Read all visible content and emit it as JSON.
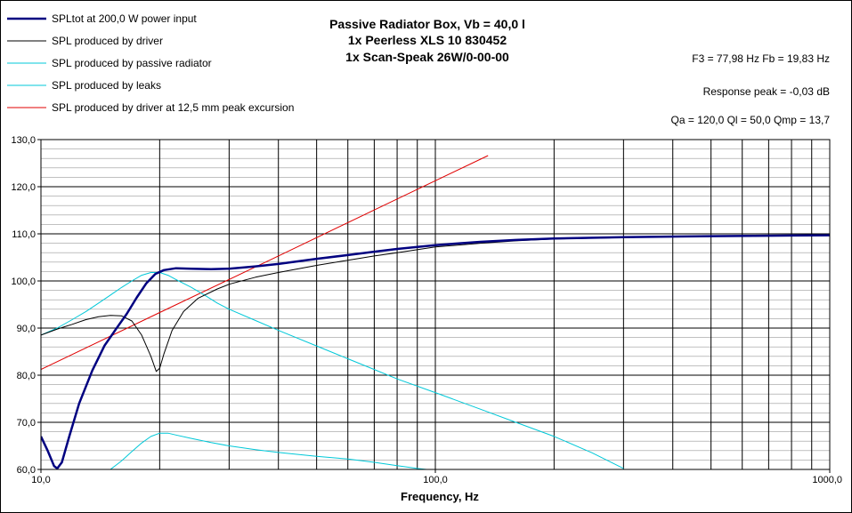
{
  "chart_data": {
    "type": "line",
    "title_lines": [
      "Passive Radiator Box, Vb = 40,0 l",
      "1x Peerless XLS 10 830452",
      "1x Scan-Speak 26W/0-00-00"
    ],
    "info_lines": [
      "F3 = 77,98 Hz  Fb = 19,83 Hz",
      "Response  peak = -0,03 dB",
      "Qa = 120,0  Ql = 50,0  Qmp = 13,7"
    ],
    "xlabel": "Frequency, Hz",
    "ylabel": "",
    "x_scale": "log",
    "xlim": [
      10,
      1000
    ],
    "ylim": [
      60,
      130
    ],
    "x_ticks": [
      {
        "value": 10,
        "label": "10,0"
      },
      {
        "value": 100,
        "label": "100,0"
      },
      {
        "value": 1000,
        "label": "1000,0"
      }
    ],
    "y_ticks": [
      {
        "value": 60,
        "label": "60,0"
      },
      {
        "value": 70,
        "label": "70,0"
      },
      {
        "value": 80,
        "label": "80,0"
      },
      {
        "value": 90,
        "label": "90,0"
      },
      {
        "value": 100,
        "label": "100,0"
      },
      {
        "value": 110,
        "label": "110,0"
      },
      {
        "value": 120,
        "label": "120,0"
      },
      {
        "value": 130,
        "label": "130,0"
      }
    ],
    "grid": true,
    "legend_position": "top-left",
    "series": [
      {
        "name": "SPLtot at 200,0 W power input",
        "color": "#000080",
        "width": 2.5,
        "points": [
          [
            10,
            67
          ],
          [
            10.4,
            64
          ],
          [
            10.8,
            60.7
          ],
          [
            11.0,
            60.2
          ],
          [
            11.3,
            61.5
          ],
          [
            11.8,
            67
          ],
          [
            12.5,
            74
          ],
          [
            13.5,
            81
          ],
          [
            14.5,
            86.3
          ],
          [
            15.5,
            89.8
          ],
          [
            16.5,
            93
          ],
          [
            17.5,
            96.5
          ],
          [
            18.5,
            99.5
          ],
          [
            19.5,
            101.5
          ],
          [
            20.5,
            102.3
          ],
          [
            22,
            102.7
          ],
          [
            24,
            102.6
          ],
          [
            27,
            102.5
          ],
          [
            30,
            102.6
          ],
          [
            35,
            103.1
          ],
          [
            40,
            103.6
          ],
          [
            50,
            104.7
          ],
          [
            60,
            105.5
          ],
          [
            70,
            106.2
          ],
          [
            80,
            106.8
          ],
          [
            100,
            107.6
          ],
          [
            130,
            108.3
          ],
          [
            160,
            108.7
          ],
          [
            200,
            109
          ],
          [
            300,
            109.3
          ],
          [
            500,
            109.5
          ],
          [
            700,
            109.6
          ],
          [
            1000,
            109.7
          ]
        ]
      },
      {
        "name": "SPL produced by driver",
        "color": "#000000",
        "width": 1,
        "points": [
          [
            10,
            88.5
          ],
          [
            11,
            89.8
          ],
          [
            12,
            90.8
          ],
          [
            13,
            91.8
          ],
          [
            14,
            92.4
          ],
          [
            15,
            92.7
          ],
          [
            16,
            92.6
          ],
          [
            17,
            91.5
          ],
          [
            18,
            88.5
          ],
          [
            19,
            84
          ],
          [
            19.6,
            80.8
          ],
          [
            20,
            81.5
          ],
          [
            20.5,
            84.5
          ],
          [
            21.5,
            89.5
          ],
          [
            23,
            93.5
          ],
          [
            25,
            96.3
          ],
          [
            28,
            98.3
          ],
          [
            30,
            99.3
          ],
          [
            35,
            100.8
          ],
          [
            40,
            101.8
          ],
          [
            50,
            103.3
          ],
          [
            60,
            104.4
          ],
          [
            70,
            105.3
          ],
          [
            80,
            106
          ],
          [
            100,
            107.2
          ],
          [
            130,
            108
          ],
          [
            160,
            108.5
          ],
          [
            200,
            108.9
          ],
          [
            300,
            109.2
          ],
          [
            500,
            109.5
          ],
          [
            1000,
            109.7
          ]
        ]
      },
      {
        "name": "SPL produced by passive radiator",
        "color": "#00c8d8",
        "width": 1,
        "points": [
          [
            10,
            88.5
          ],
          [
            11,
            90
          ],
          [
            12,
            91.8
          ],
          [
            13,
            93.5
          ],
          [
            14,
            95.3
          ],
          [
            15,
            97
          ],
          [
            16,
            98.6
          ],
          [
            17,
            100
          ],
          [
            18,
            101.2
          ],
          [
            19,
            101.8
          ],
          [
            20,
            101.8
          ],
          [
            21,
            101.2
          ],
          [
            22,
            100.3
          ],
          [
            24,
            98.7
          ],
          [
            26,
            97
          ],
          [
            28,
            95.3
          ],
          [
            30,
            94
          ],
          [
            35,
            91.6
          ],
          [
            40,
            89.5
          ],
          [
            50,
            86.2
          ],
          [
            60,
            83.5
          ],
          [
            70,
            81.2
          ],
          [
            80,
            79.2
          ],
          [
            100,
            76.3
          ],
          [
            130,
            72.8
          ],
          [
            160,
            70
          ],
          [
            200,
            67
          ],
          [
            250,
            63.5
          ],
          [
            300,
            60.2
          ]
        ]
      },
      {
        "name": "SPL produced by leaks",
        "color": "#00c8d8",
        "width": 1,
        "points": [
          [
            15,
            60
          ],
          [
            16,
            61.8
          ],
          [
            17,
            63.8
          ],
          [
            18,
            65.6
          ],
          [
            19,
            67
          ],
          [
            20,
            67.7
          ],
          [
            21,
            67.7
          ],
          [
            22,
            67.3
          ],
          [
            24,
            66.6
          ],
          [
            27,
            65.7
          ],
          [
            30,
            65
          ],
          [
            35,
            64.2
          ],
          [
            40,
            63.6
          ],
          [
            50,
            62.8
          ],
          [
            60,
            62.2
          ],
          [
            70,
            61.5
          ],
          [
            80,
            60.8
          ],
          [
            90,
            60.2
          ],
          [
            95,
            60
          ]
        ]
      },
      {
        "name": "SPL produced by driver at 12,5 mm peak excursion",
        "color": "#e00000",
        "width": 1,
        "points": [
          [
            10,
            81.2
          ],
          [
            20,
            93.3
          ],
          [
            40,
            105.3
          ],
          [
            80,
            117.4
          ],
          [
            136,
            126.6
          ]
        ]
      }
    ]
  }
}
